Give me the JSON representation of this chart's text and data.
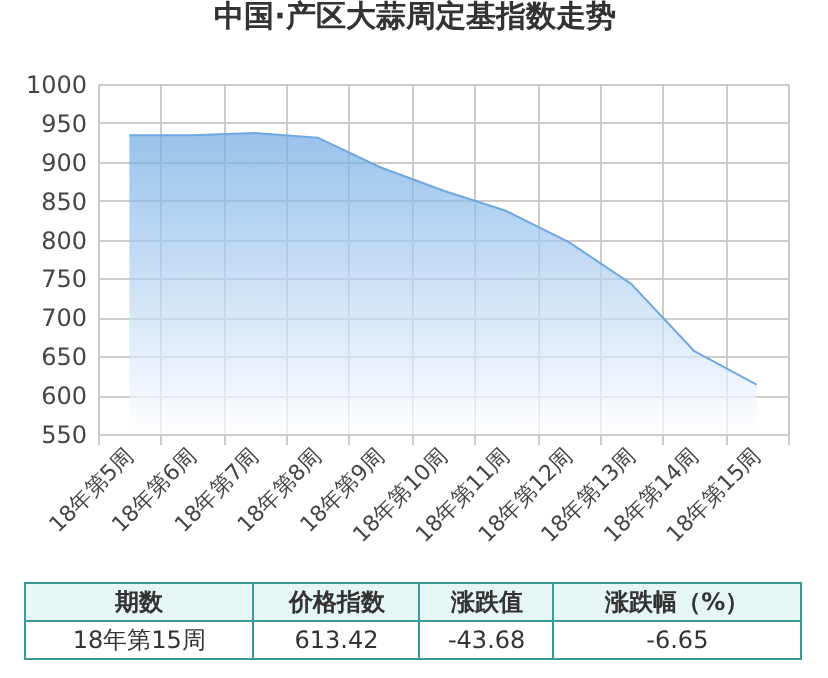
{
  "chart_data": {
    "type": "area",
    "title": "中国·产区大蒜周定基指数走势",
    "categories": [
      "18年第5周",
      "18年第6周",
      "18年第7周",
      "18年第8周",
      "18年第9周",
      "18年第10周",
      "18年第11周",
      "18年第12周",
      "18年第13周",
      "18年第14周",
      "18年第15周"
    ],
    "series": [
      {
        "color": "#6ea8e3",
        "values": [
          934,
          934,
          937,
          931,
          893,
          863,
          837,
          797,
          743,
          657,
          613.42
        ]
      }
    ],
    "ylim": [
      550,
      1000
    ],
    "yticks": [
      550,
      600,
      650,
      700,
      750,
      800,
      850,
      900,
      950,
      1000
    ],
    "grid": true,
    "annotations": [
      "期数",
      "价格指数",
      "涨跌值",
      "涨跌幅（%）",
      "18年第15周",
      "613.42",
      "-43.68",
      "-6.65"
    ]
  }
}
